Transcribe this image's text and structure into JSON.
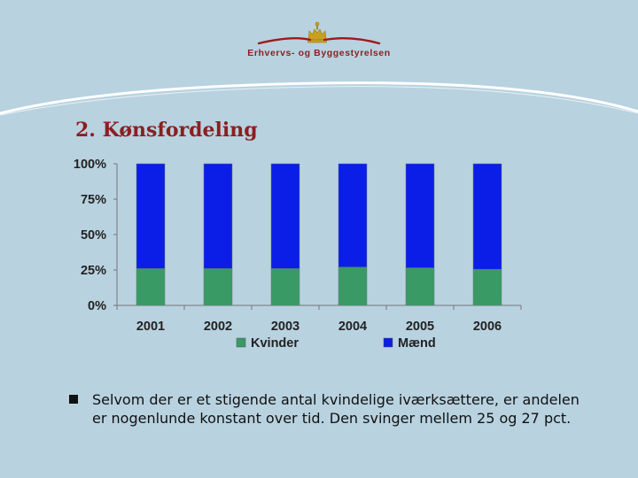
{
  "header": {
    "org_name": "Erhvervs- og Byggestyrelsen",
    "logo_icon": "crown-icon"
  },
  "slide": {
    "title": "2. Kønsfordeling"
  },
  "chart_data": {
    "type": "bar",
    "stacked": true,
    "categories": [
      "2001",
      "2002",
      "2003",
      "2004",
      "2005",
      "2006"
    ],
    "series": [
      {
        "name": "Kvinder",
        "color": "#3a9a66",
        "values": [
          26,
          26,
          26,
          27,
          26.5,
          25.5
        ]
      },
      {
        "name": "Mænd",
        "color": "#0a1ee8",
        "values": [
          74,
          74,
          74,
          73,
          73.5,
          74.5
        ]
      }
    ],
    "yticks": [
      "0%",
      "25%",
      "50%",
      "75%",
      "100%"
    ],
    "ylim": [
      0,
      100
    ],
    "grid": false,
    "legend": "bottom"
  },
  "bullets": [
    {
      "icon": "square-bullet-icon",
      "text": "Selvom der er et stigende antal kvindelige iværksættere, er andelen er nogenlunde konstant over tid. Den svinger mellem 25 og 27 pct."
    }
  ]
}
